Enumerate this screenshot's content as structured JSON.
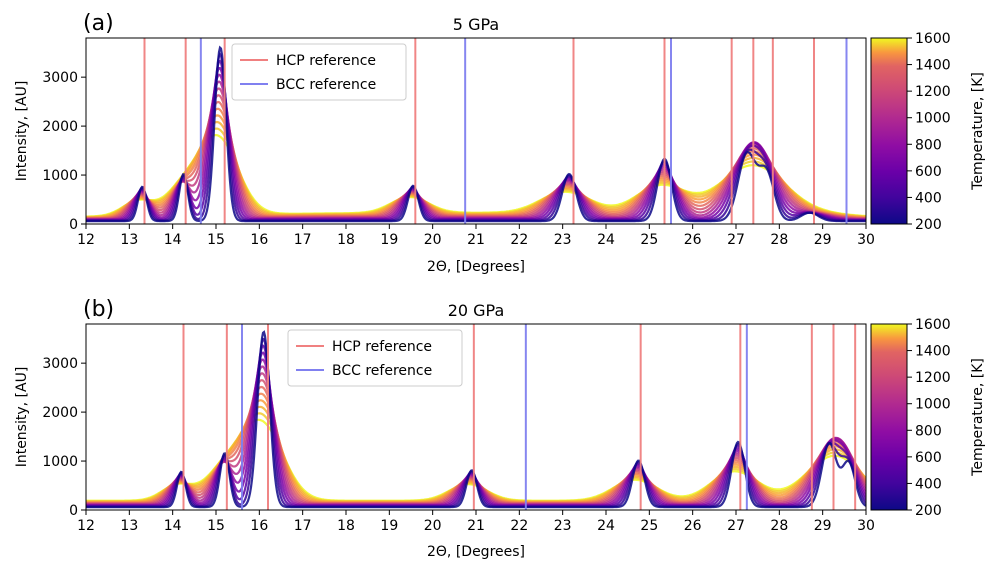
{
  "chart_data": [
    {
      "type": "line",
      "panel_label": "(a)",
      "title": "5 GPa",
      "xlabel": "2Θ, [Degrees]",
      "ylabel": "Intensity, [AU]",
      "xlim": [
        12,
        30
      ],
      "ylim": [
        0,
        3800
      ],
      "xticks": [
        "12",
        "13",
        "14",
        "15",
        "16",
        "17",
        "18",
        "19",
        "20",
        "21",
        "22",
        "23",
        "24",
        "25",
        "26",
        "27",
        "28",
        "29",
        "30"
      ],
      "yticks": [
        "0",
        "1000",
        "2000",
        "3000"
      ],
      "legend": {
        "placement": "top-center",
        "entries": [
          "HCP reference",
          "BCC reference"
        ]
      },
      "hcp_reference_lines": [
        13.35,
        14.3,
        15.2,
        19.6,
        23.25,
        25.35,
        26.9,
        27.4,
        27.85,
        28.8
      ],
      "bcc_reference_lines": [
        14.65,
        20.75,
        25.5,
        29.55
      ],
      "peaks": [
        {
          "center": 13.3,
          "height": 700,
          "width": 0.1
        },
        {
          "center": 14.25,
          "height": 960,
          "width": 0.1
        },
        {
          "center": 15.1,
          "height": 3550,
          "width": 0.13
        },
        {
          "center": 19.55,
          "height": 720,
          "width": 0.12
        },
        {
          "center": 23.15,
          "height": 960,
          "width": 0.16
        },
        {
          "center": 25.35,
          "height": 1270,
          "width": 0.16
        },
        {
          "center": 27.25,
          "height": 1360,
          "width": 0.2
        },
        {
          "center": 27.7,
          "height": 980,
          "width": 0.18
        },
        {
          "center": 28.7,
          "height": 170,
          "width": 0.2
        }
      ],
      "colorbar": {
        "label": "Temperature, [K]",
        "min": 200,
        "max": 1600,
        "ticks": [
          "200",
          "400",
          "600",
          "800",
          "1000",
          "1200",
          "1400",
          "1600"
        ]
      }
    },
    {
      "type": "line",
      "panel_label": "(b)",
      "title": "20 GPa",
      "xlabel": "2Θ, [Degrees]",
      "ylabel": "Intensity, [AU]",
      "xlim": [
        12,
        30
      ],
      "ylim": [
        0,
        3800
      ],
      "xticks": [
        "12",
        "13",
        "14",
        "15",
        "16",
        "17",
        "18",
        "19",
        "20",
        "21",
        "22",
        "23",
        "24",
        "25",
        "26",
        "27",
        "28",
        "29",
        "30"
      ],
      "yticks": [
        "0",
        "1000",
        "2000",
        "3000"
      ],
      "legend": {
        "placement": "top-center",
        "entries": [
          "HCP reference",
          "BCC reference"
        ]
      },
      "hcp_reference_lines": [
        14.25,
        15.25,
        16.2,
        20.95,
        24.8,
        27.1,
        28.75,
        29.25,
        29.75
      ],
      "bcc_reference_lines": [
        15.6,
        22.15,
        27.25
      ],
      "peaks": [
        {
          "center": 14.2,
          "height": 720,
          "width": 0.1
        },
        {
          "center": 15.2,
          "height": 1100,
          "width": 0.11
        },
        {
          "center": 16.1,
          "height": 3580,
          "width": 0.14
        },
        {
          "center": 20.9,
          "height": 750,
          "width": 0.12
        },
        {
          "center": 24.75,
          "height": 950,
          "width": 0.14
        },
        {
          "center": 27.05,
          "height": 1330,
          "width": 0.15
        },
        {
          "center": 29.15,
          "height": 1300,
          "width": 0.17
        },
        {
          "center": 29.6,
          "height": 900,
          "width": 0.15
        }
      ],
      "colorbar": {
        "label": "Temperature, [K]",
        "min": 200,
        "max": 1600,
        "ticks": [
          "200",
          "400",
          "600",
          "800",
          "1000",
          "1200",
          "1400",
          "1600"
        ]
      }
    }
  ],
  "colors": {
    "hcp": "#f08080",
    "bcc": "#8080f0"
  }
}
